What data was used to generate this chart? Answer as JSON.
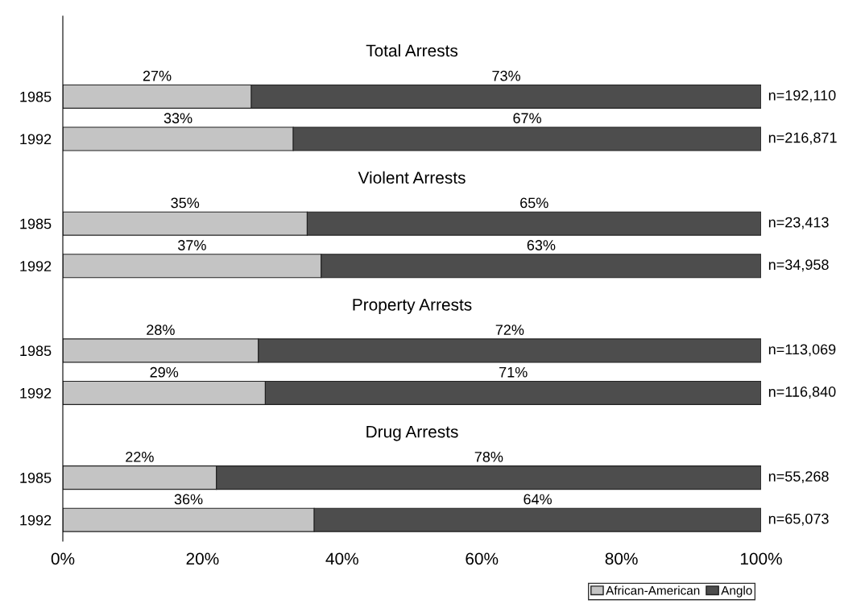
{
  "chart_data": {
    "type": "bar",
    "orientation": "horizontal",
    "stacked": true,
    "categories": [
      null,
      "1985",
      "1992",
      null,
      "1985",
      "1992",
      null,
      "1985",
      "1992",
      null,
      "1985",
      "1992"
    ],
    "series": [
      {
        "name": "African-American",
        "color": "#c4c4c4",
        "values": [
          null,
          27,
          33,
          null,
          35,
          37,
          null,
          28,
          29,
          null,
          22,
          36
        ],
        "value_labels": [
          null,
          "27%",
          "33%",
          null,
          "35%",
          "37%",
          null,
          "28%",
          "29%",
          null,
          "22%",
          "36%"
        ]
      },
      {
        "name": "Anglo",
        "color": "#4d4d4d",
        "values": [
          null,
          73,
          67,
          null,
          65,
          63,
          null,
          72,
          71,
          null,
          78,
          64
        ],
        "value_labels": [
          null,
          "73%",
          "67%",
          null,
          "65%",
          "63%",
          null,
          "72%",
          "71%",
          null,
          "78%",
          "64%"
        ]
      }
    ],
    "xlim": [
      0,
      100
    ],
    "xticks": [
      {
        "value": 0,
        "label": "0%"
      },
      {
        "value": 20,
        "label": "20%"
      },
      {
        "value": 40,
        "label": "40%"
      },
      {
        "value": 60,
        "label": "60%"
      },
      {
        "value": 80,
        "label": "80%"
      },
      {
        "value": 100,
        "label": "100%"
      }
    ],
    "annotations": [
      "Total Arrests",
      "Violent Arrests",
      "Property Arrests",
      "Drug Arrests",
      "n=192,110",
      "n=216,871",
      "n=23,413",
      "n=34,958",
      "n=113,069",
      "n=116,840",
      "n=55,268",
      "n=65,073"
    ],
    "legend": "bottom right",
    "grid": false
  }
}
